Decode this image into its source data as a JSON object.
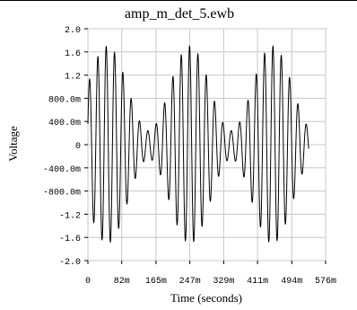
{
  "chart_data": {
    "type": "line",
    "title": "amp_m_det_5.ewb",
    "xlabel": "Time (seconds)",
    "ylabel": "Voltage",
    "xlim": [
      0,
      0.576
    ],
    "ylim": [
      -2.0,
      2.0
    ],
    "x_ticks": [
      0,
      0.082,
      0.165,
      0.247,
      0.329,
      0.411,
      0.494,
      0.576
    ],
    "x_tick_labels": [
      "0",
      "82m",
      "165m",
      "247m",
      "329m",
      "411m",
      "494m",
      "576m"
    ],
    "y_ticks": [
      2.0,
      1.6,
      1.2,
      0.8,
      0.4,
      0,
      -0.4,
      -0.8,
      -1.2,
      -1.6,
      -2.0
    ],
    "y_tick_labels": [
      "2.0",
      "1.6",
      "1.2",
      "800.0m",
      "400.0m",
      "0",
      "-400.0m",
      "-800.0m",
      "-1.2",
      "-1.6",
      "-2.0"
    ],
    "grid": true,
    "series": [
      {
        "color": "#000000",
        "signal": "amplitude-modulated sine",
        "x_end": 0.535,
        "carrier_freq_hz": 49.5,
        "carrier_peak": 1.7,
        "modulation_freq_hz": 5.0,
        "modulation_index": 0.75,
        "envelope_peak_times": [
          0.047,
          0.247,
          0.447
        ],
        "sample_points": [
          {
            "x": 0.047,
            "y": 1.7
          },
          {
            "x": 0.147,
            "y": 0.28
          },
          {
            "x": 0.247,
            "y": 1.7
          },
          {
            "x": 0.347,
            "y": 0.28
          },
          {
            "x": 0.447,
            "y": 1.7
          }
        ]
      }
    ]
  }
}
